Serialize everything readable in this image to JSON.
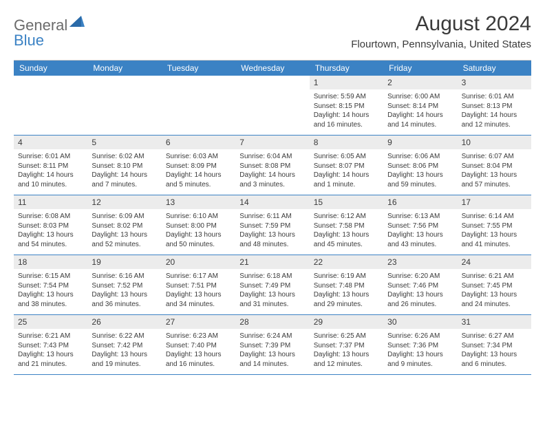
{
  "logo": {
    "part1": "General",
    "part2": "Blue"
  },
  "title": "August 2024",
  "location": "Flourtown, Pennsylvania, United States",
  "colors": {
    "header_bg": "#3b82c4",
    "header_text": "#ffffff",
    "daynum_bg": "#ececec",
    "text": "#3a3a3a",
    "border": "#3b82c4"
  },
  "day_names": [
    "Sunday",
    "Monday",
    "Tuesday",
    "Wednesday",
    "Thursday",
    "Friday",
    "Saturday"
  ],
  "weeks": [
    [
      {
        "n": "",
        "sr": "",
        "ss": "",
        "dl": ""
      },
      {
        "n": "",
        "sr": "",
        "ss": "",
        "dl": ""
      },
      {
        "n": "",
        "sr": "",
        "ss": "",
        "dl": ""
      },
      {
        "n": "",
        "sr": "",
        "ss": "",
        "dl": ""
      },
      {
        "n": "1",
        "sr": "Sunrise: 5:59 AM",
        "ss": "Sunset: 8:15 PM",
        "dl": "Daylight: 14 hours and 16 minutes."
      },
      {
        "n": "2",
        "sr": "Sunrise: 6:00 AM",
        "ss": "Sunset: 8:14 PM",
        "dl": "Daylight: 14 hours and 14 minutes."
      },
      {
        "n": "3",
        "sr": "Sunrise: 6:01 AM",
        "ss": "Sunset: 8:13 PM",
        "dl": "Daylight: 14 hours and 12 minutes."
      }
    ],
    [
      {
        "n": "4",
        "sr": "Sunrise: 6:01 AM",
        "ss": "Sunset: 8:11 PM",
        "dl": "Daylight: 14 hours and 10 minutes."
      },
      {
        "n": "5",
        "sr": "Sunrise: 6:02 AM",
        "ss": "Sunset: 8:10 PM",
        "dl": "Daylight: 14 hours and 7 minutes."
      },
      {
        "n": "6",
        "sr": "Sunrise: 6:03 AM",
        "ss": "Sunset: 8:09 PM",
        "dl": "Daylight: 14 hours and 5 minutes."
      },
      {
        "n": "7",
        "sr": "Sunrise: 6:04 AM",
        "ss": "Sunset: 8:08 PM",
        "dl": "Daylight: 14 hours and 3 minutes."
      },
      {
        "n": "8",
        "sr": "Sunrise: 6:05 AM",
        "ss": "Sunset: 8:07 PM",
        "dl": "Daylight: 14 hours and 1 minute."
      },
      {
        "n": "9",
        "sr": "Sunrise: 6:06 AM",
        "ss": "Sunset: 8:06 PM",
        "dl": "Daylight: 13 hours and 59 minutes."
      },
      {
        "n": "10",
        "sr": "Sunrise: 6:07 AM",
        "ss": "Sunset: 8:04 PM",
        "dl": "Daylight: 13 hours and 57 minutes."
      }
    ],
    [
      {
        "n": "11",
        "sr": "Sunrise: 6:08 AM",
        "ss": "Sunset: 8:03 PM",
        "dl": "Daylight: 13 hours and 54 minutes."
      },
      {
        "n": "12",
        "sr": "Sunrise: 6:09 AM",
        "ss": "Sunset: 8:02 PM",
        "dl": "Daylight: 13 hours and 52 minutes."
      },
      {
        "n": "13",
        "sr": "Sunrise: 6:10 AM",
        "ss": "Sunset: 8:00 PM",
        "dl": "Daylight: 13 hours and 50 minutes."
      },
      {
        "n": "14",
        "sr": "Sunrise: 6:11 AM",
        "ss": "Sunset: 7:59 PM",
        "dl": "Daylight: 13 hours and 48 minutes."
      },
      {
        "n": "15",
        "sr": "Sunrise: 6:12 AM",
        "ss": "Sunset: 7:58 PM",
        "dl": "Daylight: 13 hours and 45 minutes."
      },
      {
        "n": "16",
        "sr": "Sunrise: 6:13 AM",
        "ss": "Sunset: 7:56 PM",
        "dl": "Daylight: 13 hours and 43 minutes."
      },
      {
        "n": "17",
        "sr": "Sunrise: 6:14 AM",
        "ss": "Sunset: 7:55 PM",
        "dl": "Daylight: 13 hours and 41 minutes."
      }
    ],
    [
      {
        "n": "18",
        "sr": "Sunrise: 6:15 AM",
        "ss": "Sunset: 7:54 PM",
        "dl": "Daylight: 13 hours and 38 minutes."
      },
      {
        "n": "19",
        "sr": "Sunrise: 6:16 AM",
        "ss": "Sunset: 7:52 PM",
        "dl": "Daylight: 13 hours and 36 minutes."
      },
      {
        "n": "20",
        "sr": "Sunrise: 6:17 AM",
        "ss": "Sunset: 7:51 PM",
        "dl": "Daylight: 13 hours and 34 minutes."
      },
      {
        "n": "21",
        "sr": "Sunrise: 6:18 AM",
        "ss": "Sunset: 7:49 PM",
        "dl": "Daylight: 13 hours and 31 minutes."
      },
      {
        "n": "22",
        "sr": "Sunrise: 6:19 AM",
        "ss": "Sunset: 7:48 PM",
        "dl": "Daylight: 13 hours and 29 minutes."
      },
      {
        "n": "23",
        "sr": "Sunrise: 6:20 AM",
        "ss": "Sunset: 7:46 PM",
        "dl": "Daylight: 13 hours and 26 minutes."
      },
      {
        "n": "24",
        "sr": "Sunrise: 6:21 AM",
        "ss": "Sunset: 7:45 PM",
        "dl": "Daylight: 13 hours and 24 minutes."
      }
    ],
    [
      {
        "n": "25",
        "sr": "Sunrise: 6:21 AM",
        "ss": "Sunset: 7:43 PM",
        "dl": "Daylight: 13 hours and 21 minutes."
      },
      {
        "n": "26",
        "sr": "Sunrise: 6:22 AM",
        "ss": "Sunset: 7:42 PM",
        "dl": "Daylight: 13 hours and 19 minutes."
      },
      {
        "n": "27",
        "sr": "Sunrise: 6:23 AM",
        "ss": "Sunset: 7:40 PM",
        "dl": "Daylight: 13 hours and 16 minutes."
      },
      {
        "n": "28",
        "sr": "Sunrise: 6:24 AM",
        "ss": "Sunset: 7:39 PM",
        "dl": "Daylight: 13 hours and 14 minutes."
      },
      {
        "n": "29",
        "sr": "Sunrise: 6:25 AM",
        "ss": "Sunset: 7:37 PM",
        "dl": "Daylight: 13 hours and 12 minutes."
      },
      {
        "n": "30",
        "sr": "Sunrise: 6:26 AM",
        "ss": "Sunset: 7:36 PM",
        "dl": "Daylight: 13 hours and 9 minutes."
      },
      {
        "n": "31",
        "sr": "Sunrise: 6:27 AM",
        "ss": "Sunset: 7:34 PM",
        "dl": "Daylight: 13 hours and 6 minutes."
      }
    ]
  ]
}
